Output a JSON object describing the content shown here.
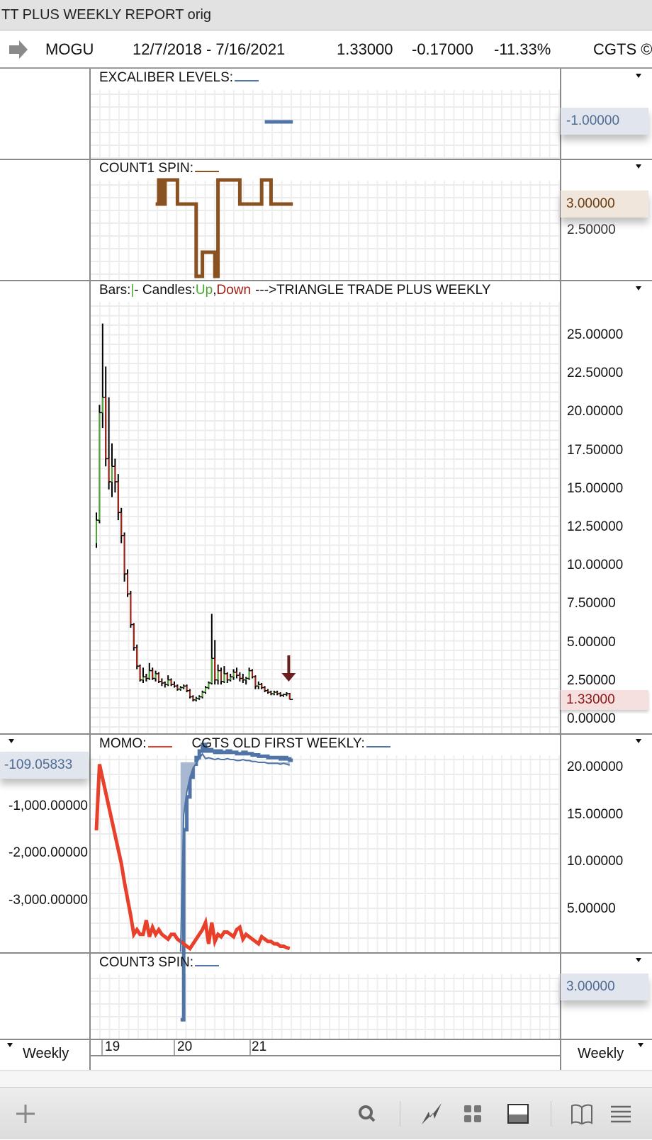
{
  "window": {
    "title": "TT PLUS WEEKLY REPORT orig"
  },
  "symbol_bar": {
    "icon": "right-arrow-icon",
    "symbol": "MOGU",
    "date_range": "12/7/2018 - 7/16/2021",
    "last": "1.33000",
    "change": "-0.17000",
    "change_pct": "-11.33%",
    "study": "CGTS ©"
  },
  "panes": {
    "excaliber": {
      "title": "EXCALIBER LEVELS:",
      "color": "#4f74a5",
      "value_label": "-1.00000"
    },
    "count1": {
      "title": "COUNT1 SPIN:",
      "color": "#8a5220",
      "value_label": "3.00000",
      "hidden_label": "2.50000"
    },
    "price": {
      "title_bars": "Bars:",
      "title_bar_glyph": "|",
      "title_candles": "- Candles:",
      "title_up": "Up",
      "title_comma": ",",
      "title_down": "Down",
      "title_rest": "--->TRIANGLE TRADE PLUS WEEKLY",
      "value_label": "1.33000",
      "up_color": "#4aa832",
      "down_color": "#a31f12"
    },
    "momo": {
      "title": "MOMO:",
      "title2": "CGTS OLD FIRST WEEKLY:",
      "momo_color": "#e8402a",
      "cgts_color": "#4f74a5",
      "left_value_label": "-109.05833"
    },
    "count3": {
      "title": "COUNT3 SPIN:",
      "color": "#4f74a5",
      "value_label": "3.00000"
    }
  },
  "time_axis": {
    "labels": [
      "19",
      "20",
      "21"
    ],
    "left_period": "Weekly",
    "right_period": "Weekly"
  },
  "toolbar": {
    "icons": [
      "plus-icon",
      "search-icon",
      "drawing-icon",
      "grid-icon",
      "window-layout-icon",
      "book-icon",
      "menu-icon"
    ]
  },
  "chart_data": [
    {
      "type": "step",
      "name": "EXCALIBER LEVELS",
      "start_bar": 54,
      "values": [
        -1,
        -1,
        -1,
        -1,
        -1,
        -1,
        -1,
        -1,
        -1
      ],
      "ticks": [
        "-1.00000"
      ]
    },
    {
      "type": "step",
      "name": "COUNT1 SPIN",
      "start_bar": 19,
      "values": [
        3,
        4,
        3,
        4,
        4,
        4,
        4,
        3,
        3,
        3,
        3,
        3,
        3,
        0,
        0,
        1,
        1,
        1,
        1,
        0,
        4,
        4,
        4,
        4,
        4,
        4,
        4,
        3,
        3,
        3,
        3,
        3,
        3,
        3,
        4,
        4,
        4,
        3,
        3,
        3,
        3,
        3,
        3,
        3
      ],
      "ticks": [
        "3.00000",
        "2.50000"
      ]
    },
    {
      "type": "candlestick",
      "interval": "weekly",
      "ticks": [
        "25.00000",
        "22.50000",
        "20.00000",
        "17.50000",
        "15.00000",
        "12.50000",
        "10.00000",
        "7.50000",
        "5.00000",
        "2.50000",
        "0.00000"
      ],
      "ylim": [
        0,
        26
      ],
      "ohlc": [
        [
          11.5,
          13.5,
          11.2,
          13
        ],
        [
          13,
          20.5,
          12.8,
          20
        ],
        [
          20,
          25.8,
          19,
          21
        ],
        [
          21,
          23,
          16.5,
          17
        ],
        [
          17,
          21,
          15,
          15.5
        ],
        [
          15.5,
          18,
          14.5,
          16.5
        ],
        [
          16.5,
          17,
          14.8,
          15.5
        ],
        [
          15.5,
          16,
          13,
          13.5
        ],
        [
          13.5,
          13.8,
          11.5,
          12
        ],
        [
          12,
          12.2,
          9,
          9.5
        ],
        [
          9.5,
          9.8,
          8,
          8.2
        ],
        [
          8.2,
          8.4,
          6,
          6.2
        ],
        [
          6.2,
          6.3,
          4.5,
          4.7
        ],
        [
          4.7,
          4.9,
          3.3,
          3.5
        ],
        [
          3.5,
          3.6,
          2.5,
          2.6
        ],
        [
          2.6,
          3.4,
          2.4,
          2.8
        ],
        [
          2.8,
          3,
          2.5,
          2.7
        ],
        [
          2.7,
          3.7,
          2.6,
          3.2
        ],
        [
          3.2,
          3.4,
          2.6,
          2.7
        ],
        [
          2.7,
          3.2,
          2.5,
          3
        ],
        [
          3,
          3.1,
          2.4,
          2.5
        ],
        [
          2.5,
          2.7,
          2.2,
          2.4
        ],
        [
          2.4,
          2.5,
          2.1,
          2.3
        ],
        [
          2.3,
          2.9,
          2.2,
          2.6
        ],
        [
          2.6,
          2.7,
          2.2,
          2.3
        ],
        [
          2.3,
          2.5,
          2.1,
          2.2
        ],
        [
          2.2,
          2.3,
          1.9,
          2.0
        ],
        [
          2.0,
          2.2,
          1.9,
          2.1
        ],
        [
          2.1,
          2.3,
          2.0,
          2.2
        ],
        [
          2.2,
          2.3,
          1.8,
          1.9
        ],
        [
          1.9,
          2.0,
          1.4,
          1.5
        ],
        [
          1.5,
          1.6,
          1.2,
          1.3
        ],
        [
          1.3,
          1.5,
          1.2,
          1.4
        ],
        [
          1.4,
          1.6,
          1.3,
          1.5
        ],
        [
          1.5,
          1.9,
          1.4,
          1.8
        ],
        [
          1.8,
          2.2,
          1.7,
          2.1
        ],
        [
          2.1,
          2.5,
          2.0,
          2.4
        ],
        [
          2.4,
          6.9,
          2.3,
          4.0
        ],
        [
          4.0,
          5.2,
          2.3,
          2.6
        ],
        [
          2.6,
          3.6,
          2.3,
          3.2
        ],
        [
          3.2,
          3.4,
          2.3,
          2.5
        ],
        [
          2.5,
          3.5,
          2.4,
          3.0
        ],
        [
          3.0,
          3.1,
          2.4,
          2.6
        ],
        [
          2.6,
          3.0,
          2.5,
          2.8
        ],
        [
          2.8,
          3.3,
          2.6,
          3.1
        ],
        [
          3.1,
          3.4,
          2.7,
          2.9
        ],
        [
          2.9,
          3.1,
          2.5,
          2.7
        ],
        [
          2.7,
          3.0,
          2.4,
          2.6
        ],
        [
          2.6,
          2.8,
          2.3,
          2.7
        ],
        [
          2.7,
          3.4,
          2.6,
          3.2
        ],
        [
          3.2,
          3.3,
          2.7,
          2.8
        ],
        [
          2.8,
          2.9,
          2.0,
          2.2
        ],
        [
          2.2,
          2.5,
          2.0,
          2.3
        ],
        [
          2.3,
          2.4,
          2.0,
          2.1
        ],
        [
          2.1,
          2.2,
          1.8,
          1.9
        ],
        [
          1.9,
          2.0,
          1.7,
          1.8
        ],
        [
          1.8,
          1.9,
          1.6,
          1.7
        ],
        [
          1.7,
          1.9,
          1.6,
          1.8
        ],
        [
          1.8,
          1.9,
          1.6,
          1.7
        ],
        [
          1.7,
          1.8,
          1.5,
          1.6
        ],
        [
          1.6,
          1.7,
          1.5,
          1.65
        ],
        [
          1.65,
          1.8,
          1.55,
          1.7
        ],
        [
          1.7,
          1.75,
          1.33,
          1.33
        ]
      ],
      "signal": {
        "type": "down-arrow",
        "bar": 61,
        "color": "#6b1e1e"
      }
    },
    {
      "type": "line",
      "name": "MOMO",
      "axis": "left",
      "ticks": [
        "-1,000.00000",
        "-2,000.00000",
        "-3,000.00000"
      ],
      "values": [
        -1500,
        -100,
        -400,
        -700,
        -1000,
        -1300,
        -1600,
        -1900,
        -2200,
        -2600,
        -2950,
        -3300,
        -3700,
        -3600,
        -3700,
        -3700,
        -3400,
        -3750,
        -3550,
        -3700,
        -3600,
        -3700,
        -3750,
        -3800,
        -3700,
        -3700,
        -3800,
        -3850,
        -3900,
        -3950,
        -4000,
        -3900,
        -3800,
        -3700,
        -3600,
        -3450,
        -3900,
        -3450,
        -3850,
        -3700,
        -3750,
        -3650,
        -3650,
        -3700,
        -3750,
        -3600,
        -3550,
        -3800,
        -3700,
        -3750,
        -3800,
        -3850,
        -3900,
        -3750,
        -3800,
        -3850,
        -3850,
        -3900,
        -3900,
        -3950,
        -3950,
        -3980,
        -4000
      ]
    },
    {
      "type": "area-line",
      "name": "CGTS OLD FIRST WEEKLY",
      "axis": "right",
      "ticks": [
        "20.00000",
        "15.00000",
        "10.00000",
        "5.00000"
      ],
      "start_bar": 27,
      "values": [
        0.5,
        15,
        17.5,
        19,
        20,
        20.5,
        21,
        21.5,
        21,
        21.1,
        21,
        20.9,
        21,
        20.9,
        20.9,
        21,
        20.9,
        20.9,
        20.8,
        20.8,
        20.9,
        20.8,
        20.8,
        20.7,
        20.7,
        20.6,
        20.6,
        20.6,
        20.5,
        20.5,
        20.5,
        20.5,
        20.4,
        20.5,
        20.4,
        20.3
      ]
    },
    {
      "type": "step",
      "name": "COUNT3 SPIN",
      "start_bar": 19,
      "values": [
        3,
        3,
        3,
        3,
        3,
        3,
        3,
        3,
        3,
        3,
        3,
        3,
        0,
        0,
        1,
        1,
        1,
        1,
        0,
        4,
        4,
        4,
        4,
        4,
        4,
        4,
        3,
        3,
        3,
        3,
        3,
        3,
        3,
        3,
        3,
        3,
        3,
        3,
        3,
        3,
        3,
        3,
        3,
        3
      ],
      "ticks": [
        "3.00000"
      ]
    }
  ]
}
